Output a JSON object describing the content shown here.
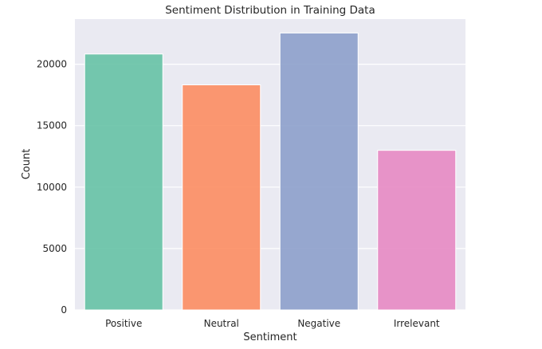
{
  "chart_data": {
    "type": "bar",
    "title": "Sentiment Distribution in Training Data",
    "xlabel": "Sentiment",
    "ylabel": "Count",
    "categories": [
      "Positive",
      "Neutral",
      "Negative",
      "Irrelevant"
    ],
    "values": [
      20830,
      18320,
      22540,
      12990
    ],
    "colors": [
      "#66c2a5",
      "#fc8d62",
      "#8da0cb",
      "#e78ac3"
    ],
    "bar_opacity": 0.9,
    "ylim": [
      0,
      23670
    ],
    "yticks": [
      0,
      5000,
      10000,
      15000,
      20000
    ],
    "ytick_labels": [
      "0",
      "5000",
      "10000",
      "15000",
      "20000"
    ],
    "grid": true,
    "legend": "none",
    "background": "#eaeaf2"
  }
}
